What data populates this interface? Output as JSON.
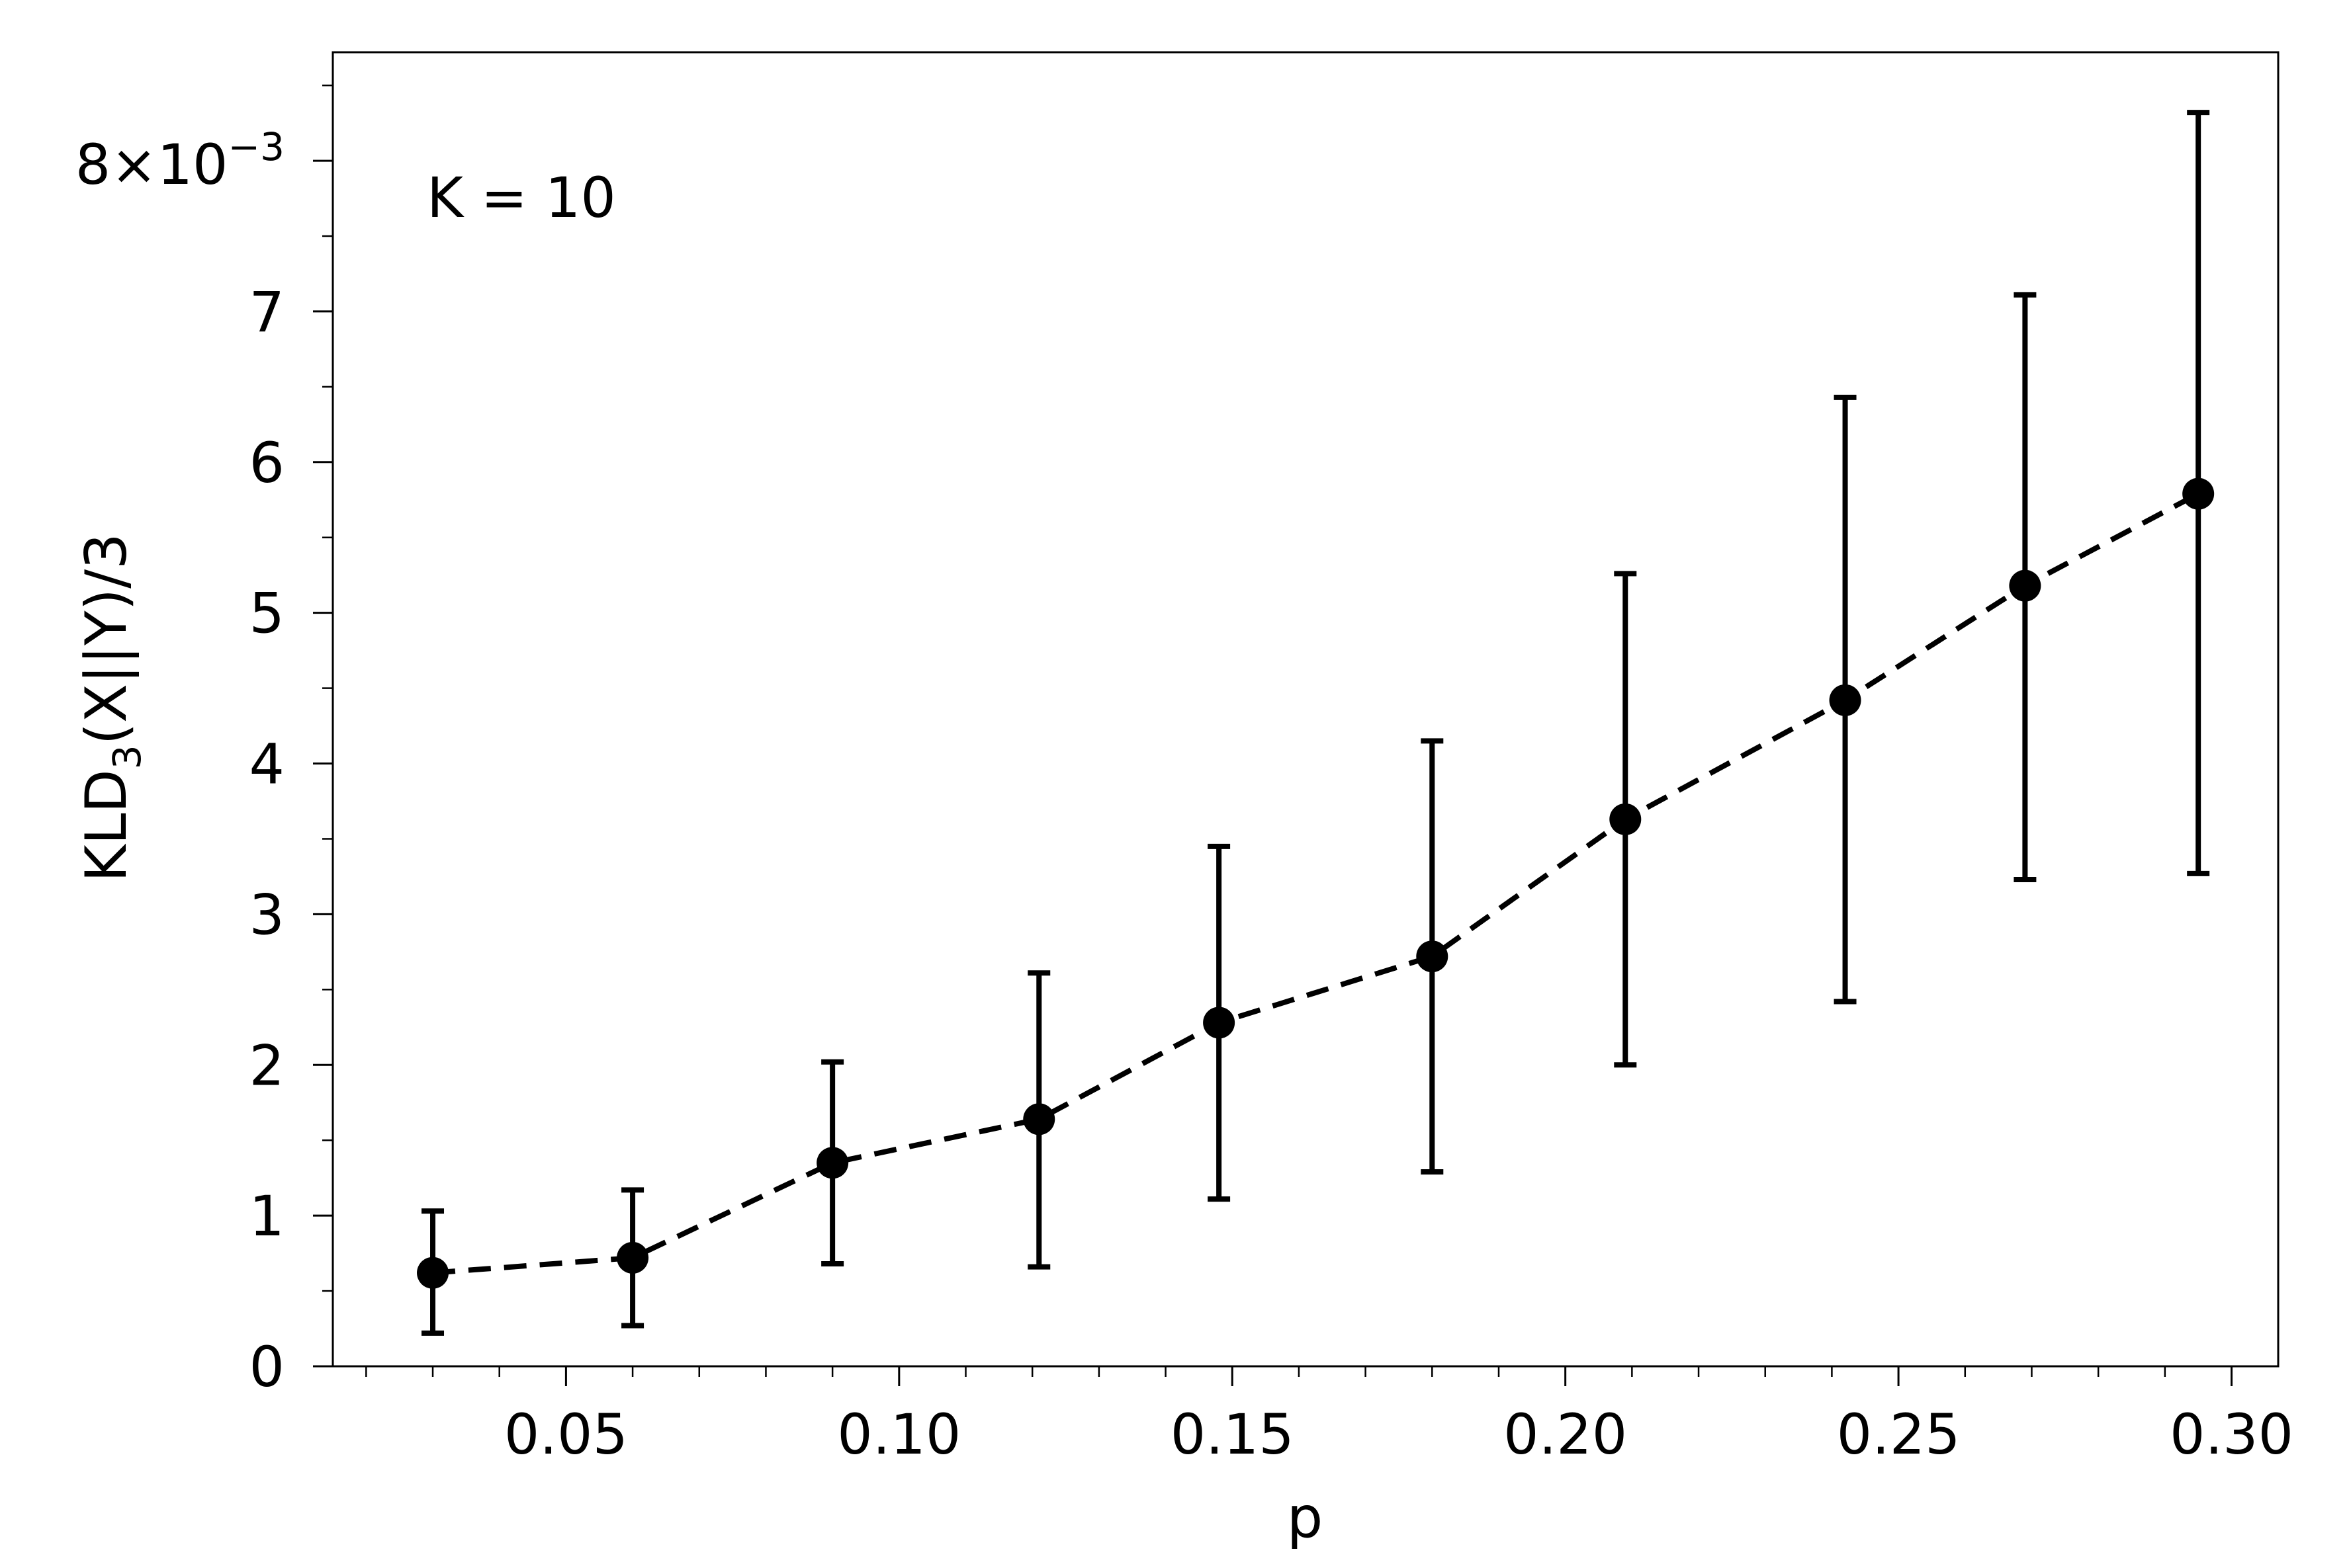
{
  "chart_data": {
    "type": "scatter",
    "title": "",
    "xlabel": "p",
    "ylabel": {
      "main": "KLD",
      "subscript": "3",
      "suffix": "(X||Y)/3"
    },
    "annotation": "K = 10",
    "x_ticks": [
      "0.05",
      "0.10",
      "0.15",
      "0.20",
      "0.25",
      "0.30"
    ],
    "x_tick_values": [
      0.05,
      0.1,
      0.15,
      0.2,
      0.25,
      0.3
    ],
    "y_ticks": [
      "0",
      "1",
      "2",
      "3",
      "4",
      "5",
      "6",
      "7"
    ],
    "y_tick_values": [
      0,
      1,
      2,
      3,
      4,
      5,
      6,
      7
    ],
    "y_top_tick": {
      "value": 8,
      "mantissa": "8×10",
      "exponent": "−3"
    },
    "y_scale_factor": 0.001,
    "xlim": [
      0.015,
      0.307
    ],
    "ylim": [
      0,
      8.72
    ],
    "grid": false,
    "legend": "none",
    "series": [
      {
        "x": [
          0.03,
          0.06,
          0.09,
          0.121,
          0.148,
          0.18,
          0.209,
          0.242,
          0.269,
          0.295
        ],
        "y": [
          0.62,
          0.72,
          1.35,
          1.64,
          2.28,
          2.72,
          3.63,
          4.42,
          5.18,
          5.79
        ],
        "y_err_low": [
          0.22,
          0.27,
          0.68,
          0.66,
          1.11,
          1.29,
          2.0,
          2.42,
          3.23,
          3.27
        ],
        "y_err_high": [
          1.03,
          1.17,
          2.02,
          2.61,
          3.45,
          4.15,
          5.26,
          6.43,
          7.11,
          8.32
        ],
        "line_style": "dashed",
        "marker": "circle",
        "color": "#000000"
      }
    ]
  }
}
